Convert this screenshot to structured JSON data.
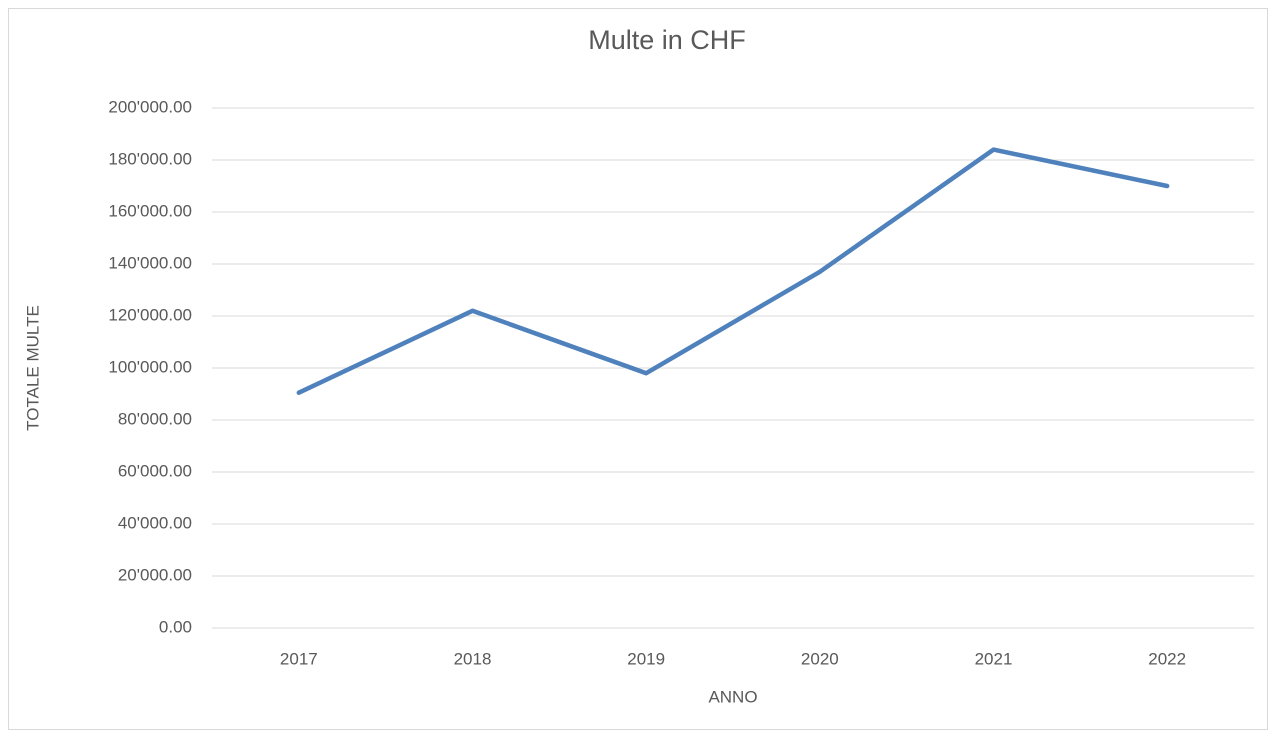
{
  "chart_data": {
    "type": "line",
    "title": "Multe in CHF",
    "x_label": "ANNO",
    "y_label": "TOTALE MULTE",
    "categories": [
      "2017",
      "2018",
      "2019",
      "2020",
      "2021",
      "2022"
    ],
    "series": [
      {
        "name": "TOTALE MULTE",
        "color": "#4f81bd",
        "values": [
          90500,
          122000,
          98000,
          137000,
          184000,
          170000
        ]
      }
    ],
    "ylim": [
      0,
      200000
    ],
    "yticks": [
      {
        "value": 0,
        "label": "0.00"
      },
      {
        "value": 20000,
        "label": "20'000.00"
      },
      {
        "value": 40000,
        "label": "40'000.00"
      },
      {
        "value": 60000,
        "label": "60'000.00"
      },
      {
        "value": 80000,
        "label": "80'000.00"
      },
      {
        "value": 100000,
        "label": "100'000.00"
      },
      {
        "value": 120000,
        "label": "120'000.00"
      },
      {
        "value": 140000,
        "label": "140'000.00"
      },
      {
        "value": 160000,
        "label": "160'000.00"
      },
      {
        "value": 180000,
        "label": "180'000.00"
      },
      {
        "value": 200000,
        "label": "200'000.00"
      }
    ],
    "grid": true,
    "legend": false
  }
}
